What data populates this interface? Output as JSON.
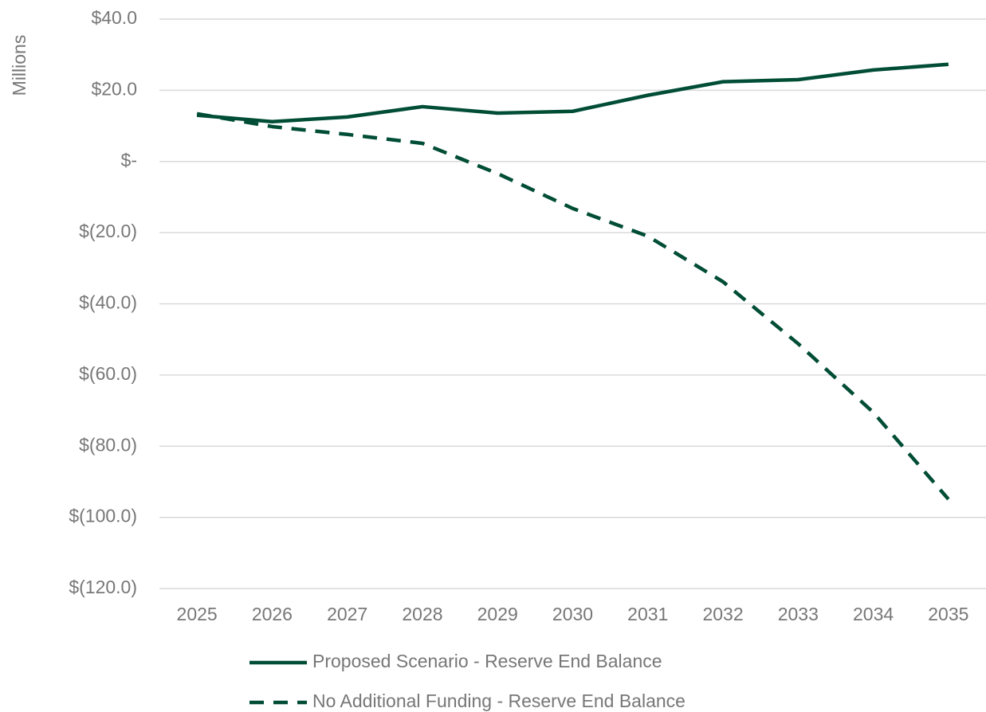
{
  "chart_data": {
    "type": "line",
    "y_axis_label": "Millions",
    "categories": [
      "2025",
      "2026",
      "2027",
      "2028",
      "2029",
      "2030",
      "2031",
      "2032",
      "2033",
      "2034",
      "2035"
    ],
    "series": [
      {
        "name": "Proposed Scenario - Reserve End Balance",
        "color": "#004d36",
        "dash": false,
        "values": [
          13.0,
          11.2,
          12.5,
          15.4,
          13.6,
          14.1,
          18.6,
          22.4,
          23.0,
          25.7,
          27.3
        ]
      },
      {
        "name": "No Additional Funding - Reserve End Balance",
        "color": "#004d36",
        "dash": true,
        "values": [
          13.4,
          9.8,
          7.6,
          5.1,
          -3.4,
          -13.2,
          -21.0,
          -33.8,
          -51.2,
          -70.5,
          -94.9
        ]
      }
    ],
    "ylim": [
      -120,
      40
    ],
    "yticks": [
      {
        "value": 40,
        "label": "$40.0"
      },
      {
        "value": 20,
        "label": "$20.0"
      },
      {
        "value": 0,
        "label": "$-"
      },
      {
        "value": -20,
        "label": "$(20.0)"
      },
      {
        "value": -40,
        "label": "$(40.0)"
      },
      {
        "value": -60,
        "label": "$(60.0)"
      },
      {
        "value": -80,
        "label": "$(80.0)"
      },
      {
        "value": -100,
        "label": "$(100.0)"
      },
      {
        "value": -120,
        "label": "$(120.0)"
      }
    ],
    "grid": true,
    "legend": "bottom"
  }
}
